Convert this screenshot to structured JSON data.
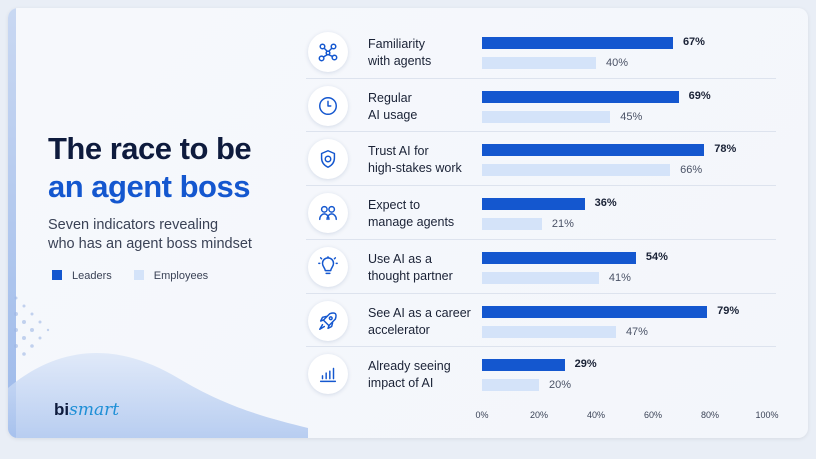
{
  "title_line1": "The race to be",
  "title_line2": "an agent boss",
  "subtitle_line1": "Seven indicators revealing",
  "subtitle_line2": "who has an agent boss mindset",
  "logo": {
    "part1": "bi",
    "part2": "smart"
  },
  "colors": {
    "leaders": "#1457cf",
    "employees": "#d4e3f9",
    "title": "#0e1b3d"
  },
  "chart_data": {
    "type": "bar",
    "orientation": "horizontal",
    "categories": [
      {
        "line1": "Familiarity",
        "line2": "with agents",
        "icon": "network-nodes-icon"
      },
      {
        "line1": "Regular",
        "line2": "AI usage",
        "icon": "clock-icon"
      },
      {
        "line1": "Trust AI for",
        "line2": "high-stakes work",
        "icon": "shield-icon"
      },
      {
        "line1": "Expect to",
        "line2": "manage agents",
        "icon": "people-icon"
      },
      {
        "line1": "Use AI as a",
        "line2": "thought partner",
        "icon": "lightbulb-icon"
      },
      {
        "line1": "See AI as a career",
        "line2": "accelerator",
        "icon": "rocket-icon"
      },
      {
        "line1": "Already seeing",
        "line2": "impact of AI",
        "icon": "bar-chart-icon"
      }
    ],
    "series": [
      {
        "name": "Leaders",
        "values": [
          67,
          69,
          78,
          36,
          54,
          79,
          29
        ]
      },
      {
        "name": "Employees",
        "values": [
          40,
          45,
          66,
          21,
          41,
          47,
          20
        ]
      }
    ],
    "value_labels_leaders": [
      "67%",
      "69%",
      "78%",
      "36%",
      "54%",
      "79%",
      "29%"
    ],
    "value_labels_employees": [
      "40%",
      "45%",
      "66%",
      "21%",
      "41%",
      "47%",
      "20%"
    ],
    "xlim": [
      0,
      100
    ],
    "xticks": [
      "0%",
      "20%",
      "40%",
      "60%",
      "80%",
      "100%"
    ],
    "legend": "left",
    "grid": false
  }
}
